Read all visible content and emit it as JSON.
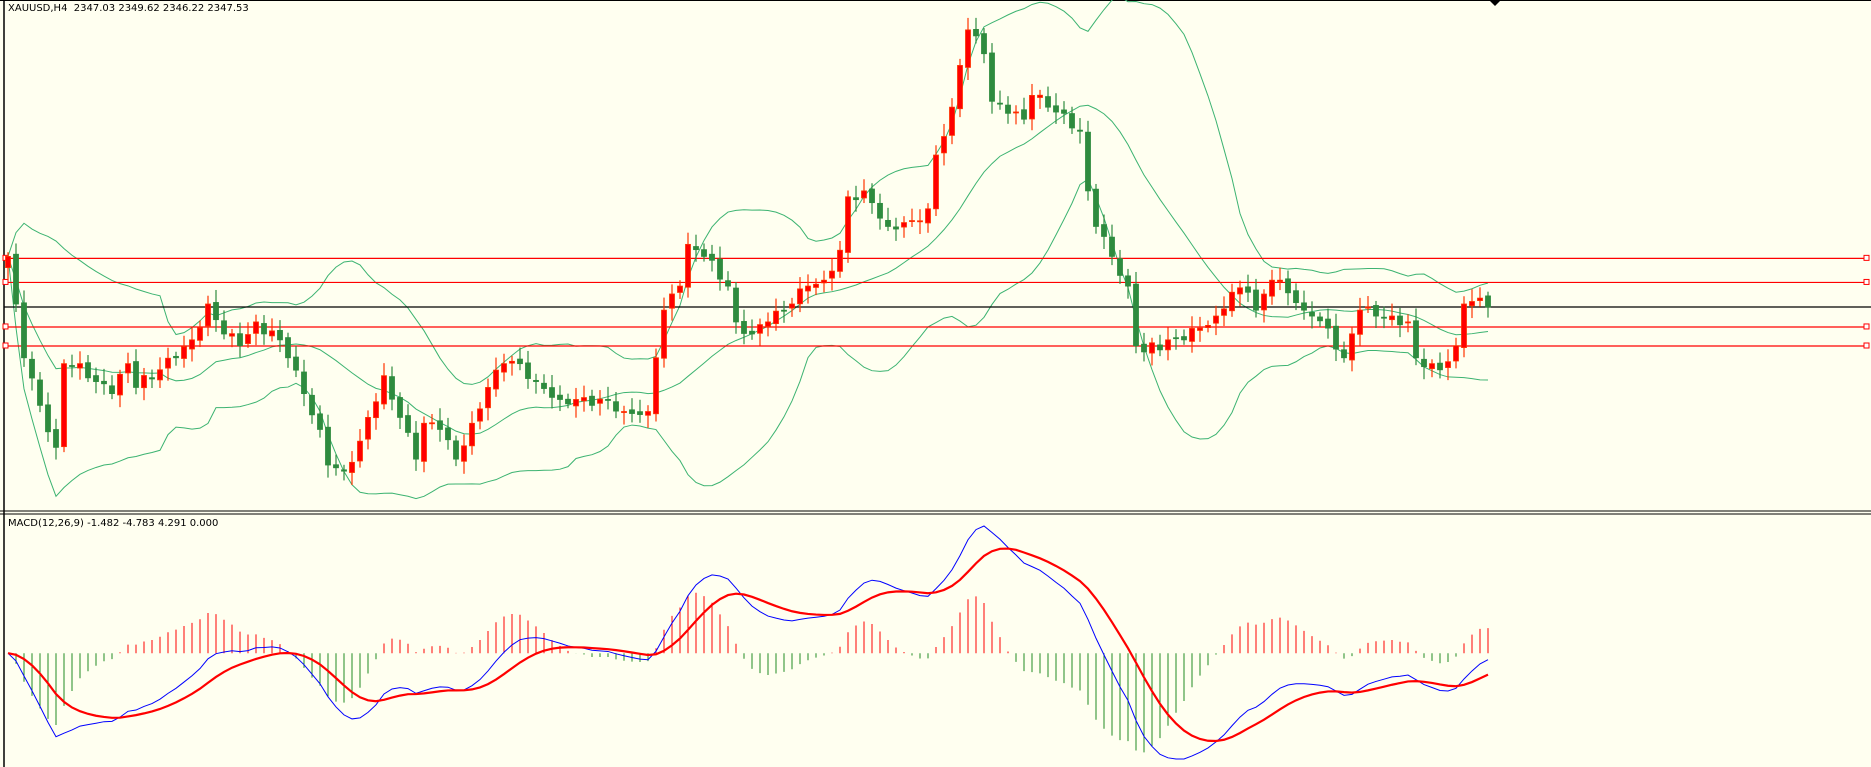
{
  "window": {
    "symbol_label": "XAUUSD,H4  2347.03 2349.62 2346.22 2347.53",
    "macd_label": "MACD(12,26,9) -1.482 -4.783 4.291 0.000"
  },
  "colors": {
    "background": "#fffff0",
    "bull_candle": "#ff0000",
    "bull_border": "#ff3300",
    "bear_candle": "#2e8b3e",
    "bands": "#3cb371",
    "hline": "#ff0000",
    "bid_line": "#000000",
    "macd_main": "#0000ff",
    "macd_signal": "#ff0000",
    "hist_pos": "#ff0000",
    "hist_neg": "#228b22"
  },
  "chart_data": {
    "type": "candlestick",
    "symbol": "XAUUSD",
    "timeframe": "H4",
    "ohlc_last": {
      "open": 2347.03,
      "high": 2349.62,
      "low": 2346.22,
      "close": 2347.53
    },
    "bid": 2347.53,
    "horizontal_levels": [
      2364.9,
      2356.3,
      2340.4,
      2333.6
    ],
    "close_anchors": [
      [
        0,
        2365.6
      ],
      [
        1,
        2348.6
      ],
      [
        2,
        2329.4
      ],
      [
        4,
        2312.4
      ],
      [
        6,
        2297.4
      ],
      [
        7,
        2327.3
      ],
      [
        9,
        2327.3
      ],
      [
        11,
        2320.9
      ],
      [
        13,
        2316.6
      ],
      [
        15,
        2327.3
      ],
      [
        16,
        2318.8
      ],
      [
        19,
        2325.1
      ],
      [
        21,
        2329.4
      ],
      [
        23,
        2335.8
      ],
      [
        25,
        2348.6
      ],
      [
        27,
        2337.9
      ],
      [
        29,
        2333.7
      ],
      [
        31,
        2342.2
      ],
      [
        34,
        2335.8
      ],
      [
        35,
        2329.4
      ],
      [
        37,
        2316.6
      ],
      [
        39,
        2303.8
      ],
      [
        40,
        2291.1
      ],
      [
        42,
        2288.9
      ],
      [
        44,
        2299.6
      ],
      [
        45,
        2308.1
      ],
      [
        47,
        2323.0
      ],
      [
        49,
        2308.1
      ],
      [
        51,
        2293.2
      ],
      [
        52,
        2306.0
      ],
      [
        54,
        2303.8
      ],
      [
        56,
        2293.2
      ],
      [
        58,
        2306.0
      ],
      [
        60,
        2318.8
      ],
      [
        62,
        2327.3
      ],
      [
        64,
        2327.3
      ],
      [
        66,
        2320.9
      ],
      [
        69,
        2314.5
      ],
      [
        71,
        2314.5
      ],
      [
        73,
        2312.4
      ],
      [
        75,
        2314.5
      ],
      [
        77,
        2310.2
      ],
      [
        80,
        2310.2
      ],
      [
        81,
        2329.4
      ],
      [
        82,
        2346.4
      ],
      [
        84,
        2355.0
      ],
      [
        85,
        2369.9
      ],
      [
        87,
        2365.6
      ],
      [
        90,
        2355.0
      ],
      [
        91,
        2342.2
      ],
      [
        93,
        2337.9
      ],
      [
        95,
        2342.2
      ],
      [
        98,
        2348.6
      ],
      [
        100,
        2355.0
      ],
      [
        102,
        2357.1
      ],
      [
        104,
        2367.8
      ],
      [
        105,
        2386.9
      ],
      [
        107,
        2389.0
      ],
      [
        108,
        2384.8
      ],
      [
        110,
        2376.3
      ],
      [
        113,
        2378.4
      ],
      [
        115,
        2382.6
      ],
      [
        116,
        2401.8
      ],
      [
        118,
        2418.9
      ],
      [
        119,
        2433.8
      ],
      [
        120,
        2446.5
      ],
      [
        122,
        2438.0
      ],
      [
        123,
        2421.0
      ],
      [
        125,
        2416.7
      ],
      [
        127,
        2414.6
      ],
      [
        128,
        2423.1
      ],
      [
        130,
        2418.9
      ],
      [
        132,
        2416.7
      ],
      [
        134,
        2410.3
      ],
      [
        135,
        2389.0
      ],
      [
        136,
        2376.3
      ],
      [
        138,
        2365.6
      ],
      [
        140,
        2355.0
      ],
      [
        141,
        2333.7
      ],
      [
        142,
        2331.5
      ],
      [
        145,
        2335.8
      ],
      [
        147,
        2335.8
      ],
      [
        149,
        2340.0
      ],
      [
        151,
        2344.3
      ],
      [
        153,
        2352.8
      ],
      [
        155,
        2352.8
      ],
      [
        156,
        2346.4
      ],
      [
        158,
        2357.1
      ],
      [
        159,
        2357.1
      ],
      [
        162,
        2346.4
      ],
      [
        163,
        2344.3
      ],
      [
        165,
        2340.0
      ],
      [
        167,
        2329.4
      ],
      [
        169,
        2346.4
      ],
      [
        171,
        2344.3
      ],
      [
        173,
        2344.3
      ],
      [
        175,
        2342.2
      ],
      [
        176,
        2329.4
      ],
      [
        178,
        2327.3
      ],
      [
        179,
        2325.1
      ],
      [
        181,
        2333.7
      ],
      [
        182,
        2348.6
      ],
      [
        184,
        2350.7
      ],
      [
        185,
        2347.53
      ]
    ],
    "indicators": {
      "bollinger": {
        "period": 20,
        "deviation": 2
      },
      "macd": {
        "fast": 12,
        "slow": 26,
        "signal": 9,
        "values": [
          -1.482,
          -4.783,
          4.291,
          0.0
        ]
      }
    }
  }
}
